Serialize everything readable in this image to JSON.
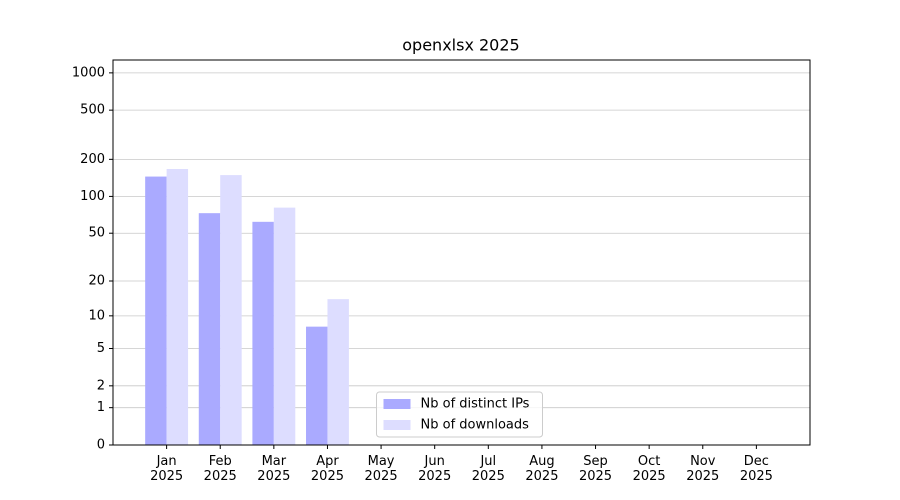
{
  "chart_data": {
    "type": "bar",
    "title": "openxlsx 2025",
    "categories": [
      "Jan 2025",
      "Feb 2025",
      "Mar 2025",
      "Apr 2025",
      "May 2025",
      "Jun 2025",
      "Jul 2025",
      "Aug 2025",
      "Sep 2025",
      "Oct 2025",
      "Nov 2025",
      "Dec 2025"
    ],
    "series": [
      {
        "name": "Nb of distinct IPs",
        "color": "#aaaaff",
        "values": [
          145,
          73,
          62,
          8,
          null,
          null,
          null,
          null,
          null,
          null,
          null,
          null
        ]
      },
      {
        "name": "Nb of downloads",
        "color": "#ddddff",
        "values": [
          167,
          149,
          81,
          14,
          null,
          null,
          null,
          null,
          null,
          null,
          null,
          null
        ]
      }
    ],
    "yscale": "log1p",
    "ylim": [
      0,
      1270
    ],
    "yticks": [
      0,
      1,
      2,
      5,
      10,
      20,
      50,
      100,
      200,
      500,
      1000
    ],
    "grid": true,
    "legend": "lower center"
  }
}
